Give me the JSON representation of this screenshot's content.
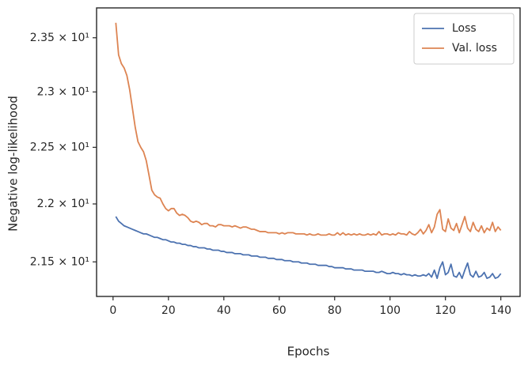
{
  "chart_data": {
    "type": "line",
    "xlabel": "Epochs",
    "ylabel": "Negative log-likelihood",
    "yscale": "log",
    "legend": "upper right",
    "xlim": [
      -5.95,
      146.95
    ],
    "xticks": [
      0,
      20,
      40,
      60,
      80,
      100,
      120,
      140
    ],
    "ylim": [
      21.207,
      23.78
    ],
    "yticks": [
      {
        "value": 21.5,
        "label": "2.15 × 10¹"
      },
      {
        "value": 22,
        "label": "2.2 × 10¹"
      },
      {
        "value": 22.5,
        "label": "2.25 × 10¹"
      },
      {
        "value": 23,
        "label": "2.3 × 10¹"
      },
      {
        "value": 23.5,
        "label": "2.35 × 10¹"
      }
    ],
    "x": [
      1,
      2,
      3,
      4,
      5,
      6,
      7,
      8,
      9,
      10,
      11,
      12,
      13,
      14,
      15,
      16,
      17,
      18,
      19,
      20,
      21,
      22,
      23,
      24,
      25,
      26,
      27,
      28,
      29,
      30,
      31,
      32,
      33,
      34,
      35,
      36,
      37,
      38,
      39,
      40,
      41,
      42,
      43,
      44,
      45,
      46,
      47,
      48,
      49,
      50,
      51,
      52,
      53,
      54,
      55,
      56,
      57,
      58,
      59,
      60,
      61,
      62,
      63,
      64,
      65,
      66,
      67,
      68,
      69,
      70,
      71,
      72,
      73,
      74,
      75,
      76,
      77,
      78,
      79,
      80,
      81,
      82,
      83,
      84,
      85,
      86,
      87,
      88,
      89,
      90,
      91,
      92,
      93,
      94,
      95,
      96,
      97,
      98,
      99,
      100,
      101,
      102,
      103,
      104,
      105,
      106,
      107,
      108,
      109,
      110,
      111,
      112,
      113,
      114,
      115,
      116,
      117,
      118,
      119,
      120,
      121,
      122,
      123,
      124,
      125,
      126,
      127,
      128,
      129,
      130,
      131,
      132,
      133,
      134,
      135,
      136,
      137,
      138,
      139,
      140
    ],
    "series": [
      {
        "name": "Loss",
        "color": "#4c72b0",
        "values": [
          21.89,
          21.85,
          21.83,
          21.81,
          21.8,
          21.79,
          21.78,
          21.77,
          21.76,
          21.75,
          21.74,
          21.74,
          21.73,
          21.72,
          21.71,
          21.71,
          21.7,
          21.69,
          21.69,
          21.68,
          21.67,
          21.67,
          21.66,
          21.66,
          21.65,
          21.65,
          21.64,
          21.64,
          21.63,
          21.63,
          21.62,
          21.62,
          21.62,
          21.61,
          21.61,
          21.6,
          21.6,
          21.6,
          21.59,
          21.59,
          21.58,
          21.58,
          21.58,
          21.57,
          21.57,
          21.57,
          21.56,
          21.56,
          21.56,
          21.55,
          21.55,
          21.55,
          21.54,
          21.54,
          21.54,
          21.53,
          21.53,
          21.53,
          21.52,
          21.52,
          21.52,
          21.51,
          21.51,
          21.51,
          21.5,
          21.5,
          21.5,
          21.49,
          21.49,
          21.49,
          21.48,
          21.48,
          21.48,
          21.47,
          21.47,
          21.47,
          21.47,
          21.46,
          21.46,
          21.45,
          21.45,
          21.45,
          21.45,
          21.44,
          21.44,
          21.44,
          21.43,
          21.43,
          21.43,
          21.43,
          21.42,
          21.42,
          21.42,
          21.42,
          21.41,
          21.41,
          21.42,
          21.41,
          21.4,
          21.4,
          21.41,
          21.4,
          21.4,
          21.39,
          21.4,
          21.39,
          21.39,
          21.38,
          21.39,
          21.38,
          21.38,
          21.39,
          21.38,
          21.4,
          21.37,
          21.43,
          21.36,
          21.45,
          21.5,
          21.39,
          21.41,
          21.48,
          21.38,
          21.37,
          21.41,
          21.36,
          21.43,
          21.49,
          21.39,
          21.37,
          21.42,
          21.37,
          21.38,
          21.41,
          21.36,
          21.37,
          21.4,
          21.36,
          21.37,
          21.4
        ]
      },
      {
        "name": "Val. loss",
        "color": "#dd8452",
        "values": [
          23.64,
          23.34,
          23.26,
          23.22,
          23.15,
          23.02,
          22.85,
          22.68,
          22.55,
          22.5,
          22.46,
          22.38,
          22.25,
          22.12,
          22.08,
          22.06,
          22.05,
          22.0,
          21.96,
          21.94,
          21.96,
          21.96,
          21.92,
          21.9,
          21.91,
          21.9,
          21.88,
          21.85,
          21.84,
          21.85,
          21.84,
          21.82,
          21.83,
          21.83,
          21.81,
          21.81,
          21.8,
          21.82,
          21.82,
          21.81,
          21.81,
          21.81,
          21.8,
          21.81,
          21.8,
          21.79,
          21.8,
          21.8,
          21.79,
          21.78,
          21.78,
          21.77,
          21.76,
          21.76,
          21.76,
          21.75,
          21.75,
          21.75,
          21.75,
          21.74,
          21.75,
          21.74,
          21.75,
          21.75,
          21.75,
          21.74,
          21.74,
          21.74,
          21.74,
          21.73,
          21.74,
          21.73,
          21.73,
          21.74,
          21.73,
          21.73,
          21.73,
          21.74,
          21.73,
          21.73,
          21.75,
          21.73,
          21.75,
          21.73,
          21.74,
          21.73,
          21.74,
          21.73,
          21.74,
          21.73,
          21.73,
          21.74,
          21.73,
          21.74,
          21.73,
          21.76,
          21.73,
          21.74,
          21.74,
          21.73,
          21.74,
          21.73,
          21.75,
          21.74,
          21.74,
          21.73,
          21.76,
          21.74,
          21.73,
          21.75,
          21.78,
          21.74,
          21.77,
          21.82,
          21.75,
          21.8,
          21.91,
          21.95,
          21.78,
          21.76,
          21.87,
          21.79,
          21.77,
          21.83,
          21.75,
          21.82,
          21.89,
          21.79,
          21.76,
          21.84,
          21.78,
          21.76,
          21.81,
          21.75,
          21.79,
          21.77,
          21.84,
          21.76,
          21.8,
          21.77
        ]
      }
    ]
  }
}
